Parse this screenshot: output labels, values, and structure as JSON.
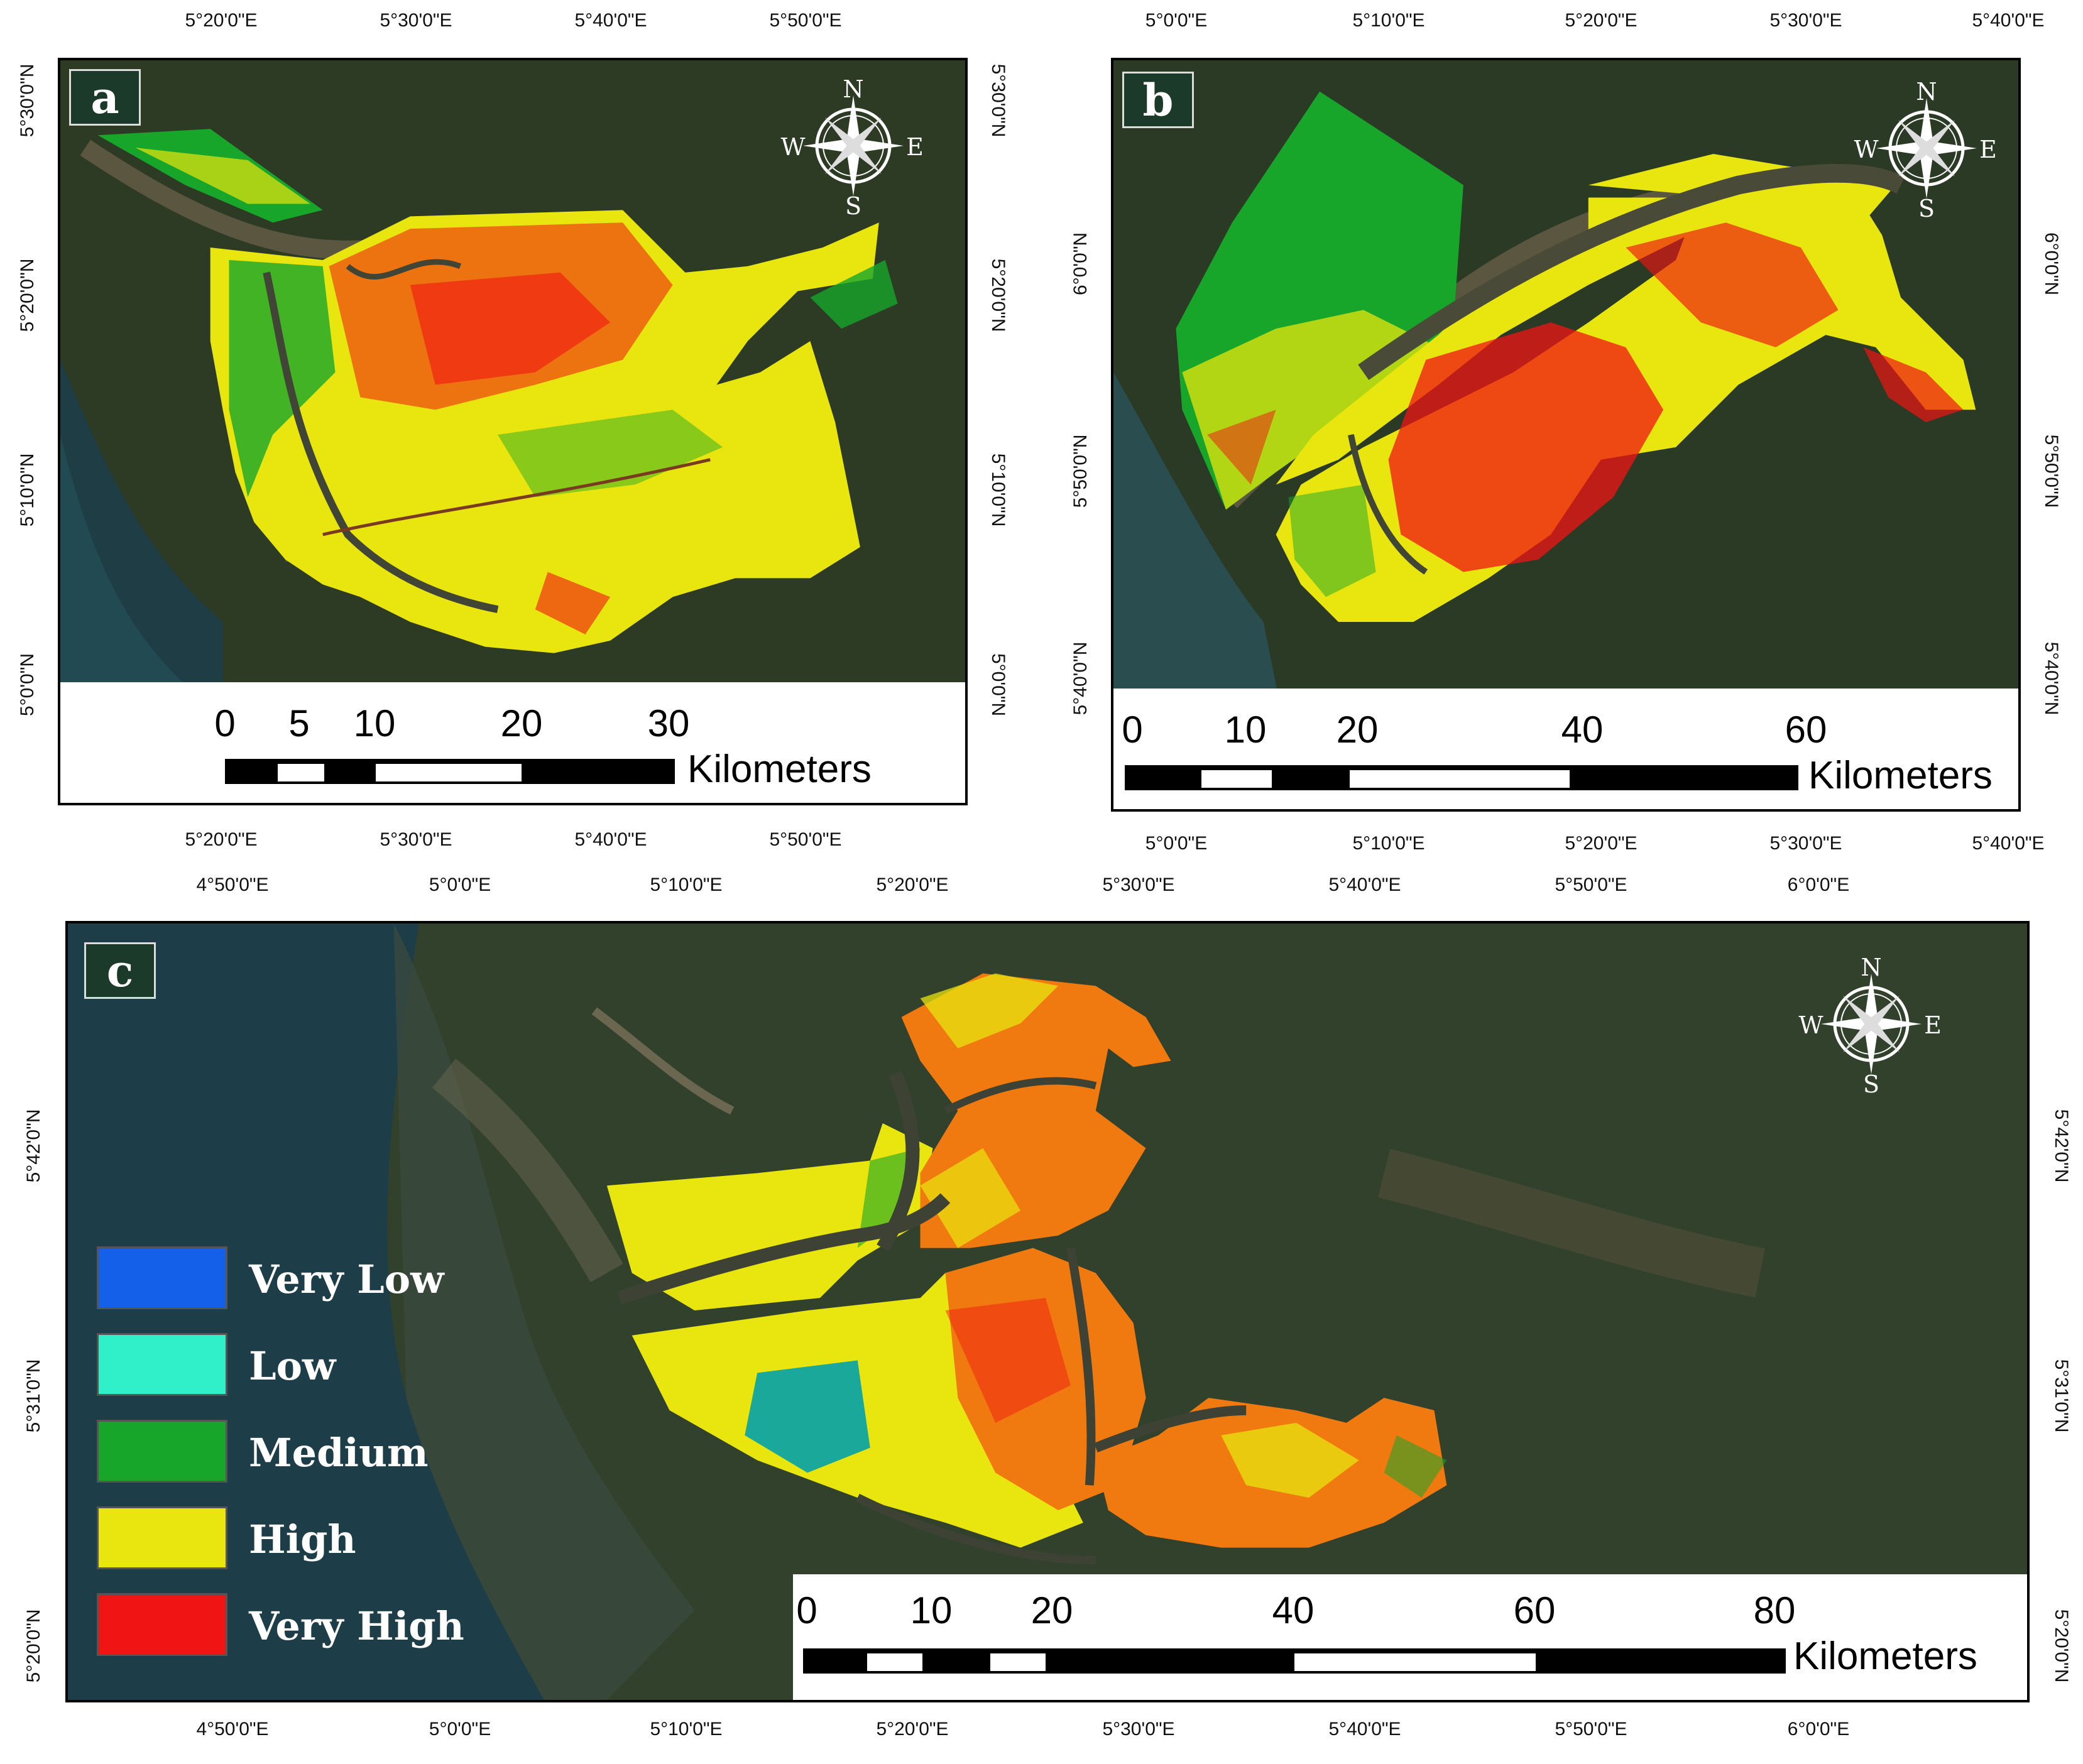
{
  "panels": {
    "a": {
      "label": "a",
      "top_ticks": [
        "5°20'0\"E",
        "5°30'0\"E",
        "5°40'0\"E",
        "5°50'0\"E"
      ],
      "bottom_ticks": [
        "5°20'0\"E",
        "5°30'0\"E",
        "5°40'0\"E",
        "5°50'0\"E"
      ],
      "left_ticks": [
        "5°30'0\"N",
        "5°20'0\"N",
        "5°10'0\"N",
        "5°0'0\"N"
      ],
      "right_ticks": [
        "5°30'0\"N",
        "5°20'0\"N",
        "5°10'0\"N",
        "5°0'0\"N"
      ],
      "scale": {
        "numbers": [
          "0",
          "5",
          "10",
          "20",
          "30"
        ],
        "unit": "Kilometers"
      },
      "compass": {
        "n": "N",
        "s": "S",
        "e": "E",
        "w": "W"
      }
    },
    "b": {
      "label": "b",
      "top_ticks": [
        "5°0'0\"E",
        "5°10'0\"E",
        "5°20'0\"E",
        "5°30'0\"E",
        "5°40'0\"E"
      ],
      "bottom_ticks": [
        "5°0'0\"E",
        "5°10'0\"E",
        "5°20'0\"E",
        "5°30'0\"E",
        "5°40'0\"E"
      ],
      "left_ticks": [
        "6°0'0\"N",
        "5°50'0\"N",
        "5°40'0\"N"
      ],
      "right_ticks": [
        "6°0'0\"N",
        "5°50'0\"N",
        "5°40'0\"N"
      ],
      "scale": {
        "numbers": [
          "0",
          "10",
          "20",
          "40",
          "60"
        ],
        "unit": "Kilometers"
      },
      "compass": {
        "n": "N",
        "s": "S",
        "e": "E",
        "w": "W"
      }
    },
    "c": {
      "label": "c",
      "top_ticks": [
        "4°50'0\"E",
        "5°0'0\"E",
        "5°10'0\"E",
        "5°20'0\"E",
        "5°30'0\"E",
        "5°40'0\"E",
        "5°50'0\"E",
        "6°0'0\"E"
      ],
      "bottom_ticks": [
        "4°50'0\"E",
        "5°0'0\"E",
        "5°10'0\"E",
        "5°20'0\"E",
        "5°30'0\"E",
        "5°40'0\"E",
        "5°50'0\"E",
        "6°0'0\"E"
      ],
      "left_ticks": [
        "5°42'0\"N",
        "5°31'0\"N",
        "5°20'0\"N"
      ],
      "right_ticks": [
        "5°42'0\"N",
        "5°31'0\"N",
        "5°20'0\"N"
      ],
      "scale": {
        "numbers": [
          "0",
          "10",
          "20",
          "40",
          "60",
          "80"
        ],
        "unit": "Kilometers"
      },
      "compass": {
        "n": "N",
        "s": "S",
        "e": "E",
        "w": "W"
      }
    }
  },
  "legend": [
    {
      "label": "Very Low",
      "color": "#1560e8"
    },
    {
      "label": "Low",
      "color": "#2ff0c8"
    },
    {
      "label": "Medium",
      "color": "#17a62a"
    },
    {
      "label": "High",
      "color": "#e8e60e"
    },
    {
      "label": "Very High",
      "color": "#f01414"
    }
  ],
  "colors": {
    "land": "#2c3a22",
    "water": "#1d3a42",
    "river": "#4a4a38",
    "very_high": "#f01414",
    "high": "#e8e60e",
    "medium": "#17a62a",
    "orange": "#f07a10"
  }
}
